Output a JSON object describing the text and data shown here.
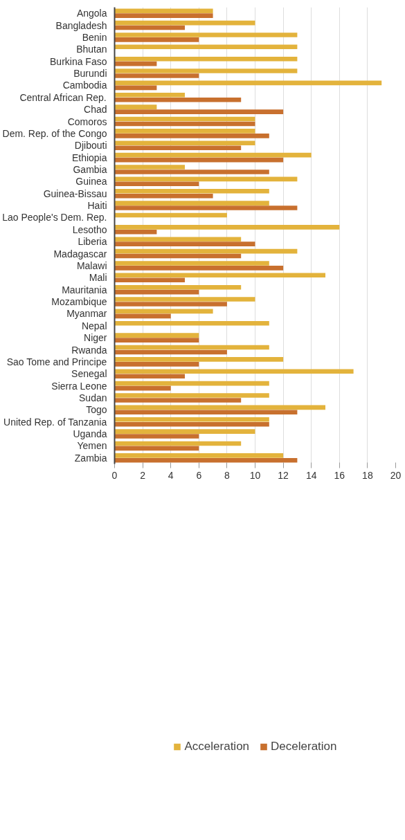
{
  "chart_data": {
    "type": "bar",
    "orientation": "horizontal",
    "categories": [
      "Angola",
      "Bangladesh",
      "Benin",
      "Bhutan",
      "Burkina Faso",
      "Burundi",
      "Cambodia",
      "Central African Rep.",
      "Chad",
      "Comoros",
      "Dem. Rep. of the Congo",
      "Djibouti",
      "Ethiopia",
      "Gambia",
      "Guinea",
      "Guinea-Bissau",
      "Haiti",
      "Lao People's Dem. Rep.",
      "Lesotho",
      "Liberia",
      "Madagascar",
      "Malawi",
      "Mali",
      "Mauritania",
      "Mozambique",
      "Myanmar",
      "Nepal",
      "Niger",
      "Rwanda",
      "Sao Tome and Principe",
      "Senegal",
      "Sierra Leone",
      "Sudan",
      "Togo",
      "United Rep. of Tanzania",
      "Uganda",
      "Yemen",
      "Zambia"
    ],
    "series": [
      {
        "name": "Acceleration",
        "color": "#e3b33c",
        "values": [
          7,
          10,
          13,
          13,
          13,
          13,
          19,
          5,
          3,
          10,
          10,
          10,
          14,
          5,
          13,
          11,
          11,
          8,
          16,
          9,
          13,
          11,
          15,
          9,
          10,
          7,
          11,
          6,
          11,
          12,
          17,
          11,
          11,
          15,
          11,
          10,
          9,
          12
        ]
      },
      {
        "name": "Deceleration",
        "color": "#c8702e",
        "values": [
          7,
          5,
          6,
          null,
          3,
          6,
          3,
          9,
          12,
          10,
          11,
          9,
          12,
          11,
          6,
          7,
          13,
          null,
          3,
          10,
          9,
          12,
          5,
          6,
          8,
          4,
          null,
          6,
          8,
          6,
          5,
          4,
          9,
          13,
          11,
          6,
          6,
          13
        ]
      }
    ],
    "xlim": [
      0,
      20
    ],
    "xticks": [
      0,
      2,
      4,
      6,
      8,
      10,
      12,
      14,
      16,
      18,
      20
    ],
    "grid": "x",
    "legend": "bottom"
  }
}
